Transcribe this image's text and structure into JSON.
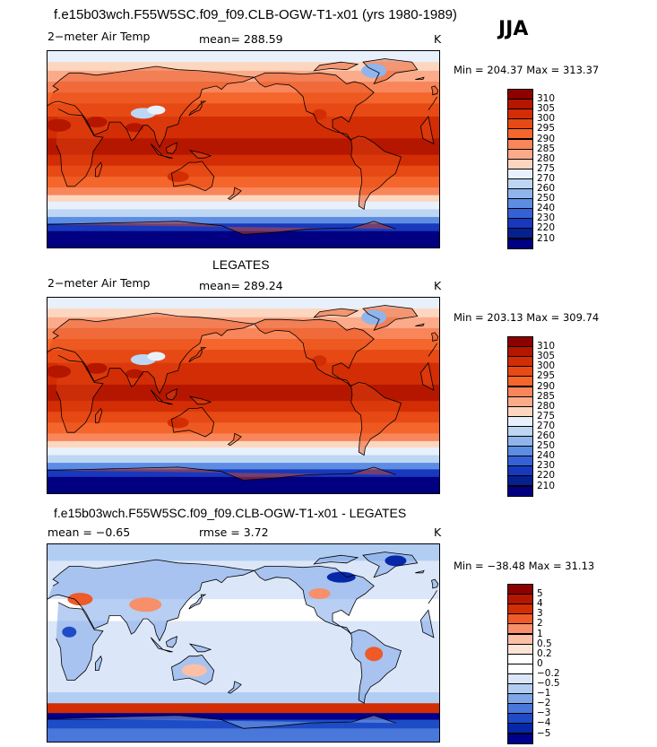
{
  "figure": {
    "title": "f.e15b03wch.F55W5SC.f09_f09.CLB-OGW-T1-x01 (yrs 1980-1989)",
    "season": "JJA"
  },
  "panels": [
    {
      "id": "model",
      "title": "",
      "left_label": "2−meter Air Temp",
      "center_label": "mean=  288.59",
      "units": "K",
      "minmax": "Min = 204.37 Max = 313.37",
      "palette": "warm",
      "colorbar": {
        "labels": [
          "310",
          "305",
          "300",
          "295",
          "290",
          "285",
          "280",
          "275",
          "270",
          "260",
          "250",
          "240",
          "230",
          "220",
          "210"
        ],
        "colors": [
          "#8c0000",
          "#b51600",
          "#d22d04",
          "#e74a14",
          "#f4662c",
          "#f8865a",
          "#fbab8a",
          "#fdd6c0",
          "#e8f1fb",
          "#bcd6f3",
          "#8fb5ec",
          "#5d8de3",
          "#3462d6",
          "#1838bd",
          "#06208e",
          "#000080"
        ]
      }
    },
    {
      "id": "obs",
      "title": "LEGATES",
      "left_label": "2−meter Air Temp",
      "center_label": "mean=  289.24",
      "units": "K",
      "minmax": "Min = 203.13 Max = 309.74",
      "palette": "warm",
      "colorbar": {
        "labels": [
          "310",
          "305",
          "300",
          "295",
          "290",
          "285",
          "280",
          "275",
          "270",
          "260",
          "250",
          "240",
          "230",
          "220",
          "210"
        ],
        "colors": [
          "#8c0000",
          "#b51600",
          "#d22d04",
          "#e74a14",
          "#f4662c",
          "#f8865a",
          "#fbab8a",
          "#fdd6c0",
          "#e8f1fb",
          "#bcd6f3",
          "#8fb5ec",
          "#5d8de3",
          "#3462d6",
          "#1838bd",
          "#06208e",
          "#000080"
        ]
      }
    },
    {
      "id": "diff",
      "title": "f.e15b03wch.F55W5SC.f09_f09.CLB-OGW-T1-x01 - LEGATES",
      "left_label": "mean =   −0.65",
      "center_label": "rmse =    3.72",
      "units": "K",
      "minmax": "Min = −38.48 Max =  31.13",
      "palette": "diff",
      "colorbar": {
        "labels": [
          "5",
          "4",
          "3",
          "2",
          "1",
          "0.5",
          "0.2",
          "0",
          "−0.2",
          "−0.5",
          "−1",
          "−2",
          "−3",
          "−4",
          "−5"
        ],
        "colors": [
          "#8c0000",
          "#b51600",
          "#d22d04",
          "#ee5a28",
          "#f68f6a",
          "#fbbfa5",
          "#fde3d6",
          "#ffffff",
          "#ffffff",
          "#dbe7f8",
          "#b2cdf2",
          "#7ea6e8",
          "#4a78da",
          "#1e4cc6",
          "#0628a8",
          "#00008c"
        ]
      }
    }
  ]
}
